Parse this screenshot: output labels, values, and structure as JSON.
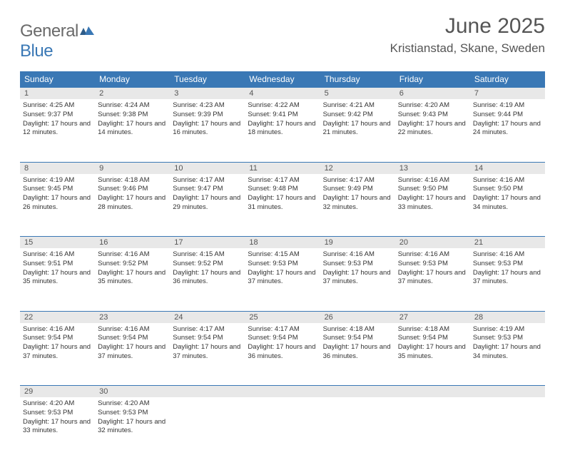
{
  "brand": {
    "name_gray": "General",
    "name_blue": "Blue"
  },
  "title": "June 2025",
  "location": "Kristianstad, Skane, Sweden",
  "header_bg": "#3a78b5",
  "daynum_bg": "#e8e8e8",
  "weekdays": [
    "Sunday",
    "Monday",
    "Tuesday",
    "Wednesday",
    "Thursday",
    "Friday",
    "Saturday"
  ],
  "weeks": [
    [
      {
        "n": "1",
        "sr": "4:25 AM",
        "ss": "9:37 PM",
        "dl": "17 hours and 12 minutes."
      },
      {
        "n": "2",
        "sr": "4:24 AM",
        "ss": "9:38 PM",
        "dl": "17 hours and 14 minutes."
      },
      {
        "n": "3",
        "sr": "4:23 AM",
        "ss": "9:39 PM",
        "dl": "17 hours and 16 minutes."
      },
      {
        "n": "4",
        "sr": "4:22 AM",
        "ss": "9:41 PM",
        "dl": "17 hours and 18 minutes."
      },
      {
        "n": "5",
        "sr": "4:21 AM",
        "ss": "9:42 PM",
        "dl": "17 hours and 21 minutes."
      },
      {
        "n": "6",
        "sr": "4:20 AM",
        "ss": "9:43 PM",
        "dl": "17 hours and 22 minutes."
      },
      {
        "n": "7",
        "sr": "4:19 AM",
        "ss": "9:44 PM",
        "dl": "17 hours and 24 minutes."
      }
    ],
    [
      {
        "n": "8",
        "sr": "4:19 AM",
        "ss": "9:45 PM",
        "dl": "17 hours and 26 minutes."
      },
      {
        "n": "9",
        "sr": "4:18 AM",
        "ss": "9:46 PM",
        "dl": "17 hours and 28 minutes."
      },
      {
        "n": "10",
        "sr": "4:17 AM",
        "ss": "9:47 PM",
        "dl": "17 hours and 29 minutes."
      },
      {
        "n": "11",
        "sr": "4:17 AM",
        "ss": "9:48 PM",
        "dl": "17 hours and 31 minutes."
      },
      {
        "n": "12",
        "sr": "4:17 AM",
        "ss": "9:49 PM",
        "dl": "17 hours and 32 minutes."
      },
      {
        "n": "13",
        "sr": "4:16 AM",
        "ss": "9:50 PM",
        "dl": "17 hours and 33 minutes."
      },
      {
        "n": "14",
        "sr": "4:16 AM",
        "ss": "9:50 PM",
        "dl": "17 hours and 34 minutes."
      }
    ],
    [
      {
        "n": "15",
        "sr": "4:16 AM",
        "ss": "9:51 PM",
        "dl": "17 hours and 35 minutes."
      },
      {
        "n": "16",
        "sr": "4:16 AM",
        "ss": "9:52 PM",
        "dl": "17 hours and 35 minutes."
      },
      {
        "n": "17",
        "sr": "4:15 AM",
        "ss": "9:52 PM",
        "dl": "17 hours and 36 minutes."
      },
      {
        "n": "18",
        "sr": "4:15 AM",
        "ss": "9:53 PM",
        "dl": "17 hours and 37 minutes."
      },
      {
        "n": "19",
        "sr": "4:16 AM",
        "ss": "9:53 PM",
        "dl": "17 hours and 37 minutes."
      },
      {
        "n": "20",
        "sr": "4:16 AM",
        "ss": "9:53 PM",
        "dl": "17 hours and 37 minutes."
      },
      {
        "n": "21",
        "sr": "4:16 AM",
        "ss": "9:53 PM",
        "dl": "17 hours and 37 minutes."
      }
    ],
    [
      {
        "n": "22",
        "sr": "4:16 AM",
        "ss": "9:54 PM",
        "dl": "17 hours and 37 minutes."
      },
      {
        "n": "23",
        "sr": "4:16 AM",
        "ss": "9:54 PM",
        "dl": "17 hours and 37 minutes."
      },
      {
        "n": "24",
        "sr": "4:17 AM",
        "ss": "9:54 PM",
        "dl": "17 hours and 37 minutes."
      },
      {
        "n": "25",
        "sr": "4:17 AM",
        "ss": "9:54 PM",
        "dl": "17 hours and 36 minutes."
      },
      {
        "n": "26",
        "sr": "4:18 AM",
        "ss": "9:54 PM",
        "dl": "17 hours and 36 minutes."
      },
      {
        "n": "27",
        "sr": "4:18 AM",
        "ss": "9:54 PM",
        "dl": "17 hours and 35 minutes."
      },
      {
        "n": "28",
        "sr": "4:19 AM",
        "ss": "9:53 PM",
        "dl": "17 hours and 34 minutes."
      }
    ],
    [
      {
        "n": "29",
        "sr": "4:20 AM",
        "ss": "9:53 PM",
        "dl": "17 hours and 33 minutes."
      },
      {
        "n": "30",
        "sr": "4:20 AM",
        "ss": "9:53 PM",
        "dl": "17 hours and 32 minutes."
      },
      null,
      null,
      null,
      null,
      null
    ]
  ],
  "labels": {
    "sunrise": "Sunrise:",
    "sunset": "Sunset:",
    "daylight": "Daylight:"
  }
}
